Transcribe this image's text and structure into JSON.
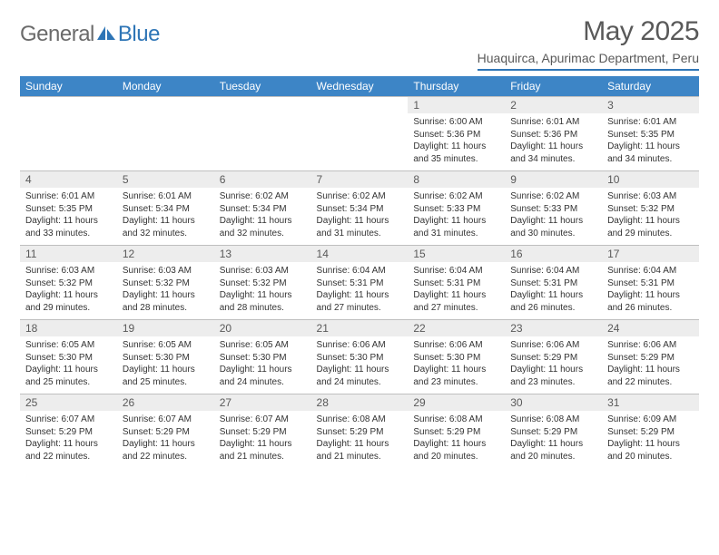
{
  "logo": {
    "part1": "General",
    "part2": "Blue"
  },
  "title": "May 2025",
  "subtitle": "Huaquirca, Apurimac Department, Peru",
  "colors": {
    "header_bg": "#3d85c6",
    "header_text": "#ffffff",
    "rule": "#2e75b6",
    "daybar_bg": "#ededed",
    "daybar_border": "#bfbfbf",
    "text": "#333333",
    "muted": "#595959",
    "logo_gray": "#6b6b6b",
    "logo_blue": "#2e75b6",
    "background": "#ffffff"
  },
  "typography": {
    "title_fontsize": 30,
    "subtitle_fontsize": 14,
    "weekday_fontsize": 12,
    "daynum_fontsize": 12,
    "cell_fontsize": 10,
    "font_family": "Arial"
  },
  "weekdays": [
    "Sunday",
    "Monday",
    "Tuesday",
    "Wednesday",
    "Thursday",
    "Friday",
    "Saturday"
  ],
  "weeks": [
    [
      null,
      null,
      null,
      null,
      {
        "n": "1",
        "sunrise": "6:00 AM",
        "sunset": "5:36 PM",
        "daylight": "11 hours and 35 minutes."
      },
      {
        "n": "2",
        "sunrise": "6:01 AM",
        "sunset": "5:36 PM",
        "daylight": "11 hours and 34 minutes."
      },
      {
        "n": "3",
        "sunrise": "6:01 AM",
        "sunset": "5:35 PM",
        "daylight": "11 hours and 34 minutes."
      }
    ],
    [
      {
        "n": "4",
        "sunrise": "6:01 AM",
        "sunset": "5:35 PM",
        "daylight": "11 hours and 33 minutes."
      },
      {
        "n": "5",
        "sunrise": "6:01 AM",
        "sunset": "5:34 PM",
        "daylight": "11 hours and 32 minutes."
      },
      {
        "n": "6",
        "sunrise": "6:02 AM",
        "sunset": "5:34 PM",
        "daylight": "11 hours and 32 minutes."
      },
      {
        "n": "7",
        "sunrise": "6:02 AM",
        "sunset": "5:34 PM",
        "daylight": "11 hours and 31 minutes."
      },
      {
        "n": "8",
        "sunrise": "6:02 AM",
        "sunset": "5:33 PM",
        "daylight": "11 hours and 31 minutes."
      },
      {
        "n": "9",
        "sunrise": "6:02 AM",
        "sunset": "5:33 PM",
        "daylight": "11 hours and 30 minutes."
      },
      {
        "n": "10",
        "sunrise": "6:03 AM",
        "sunset": "5:32 PM",
        "daylight": "11 hours and 29 minutes."
      }
    ],
    [
      {
        "n": "11",
        "sunrise": "6:03 AM",
        "sunset": "5:32 PM",
        "daylight": "11 hours and 29 minutes."
      },
      {
        "n": "12",
        "sunrise": "6:03 AM",
        "sunset": "5:32 PM",
        "daylight": "11 hours and 28 minutes."
      },
      {
        "n": "13",
        "sunrise": "6:03 AM",
        "sunset": "5:32 PM",
        "daylight": "11 hours and 28 minutes."
      },
      {
        "n": "14",
        "sunrise": "6:04 AM",
        "sunset": "5:31 PM",
        "daylight": "11 hours and 27 minutes."
      },
      {
        "n": "15",
        "sunrise": "6:04 AM",
        "sunset": "5:31 PM",
        "daylight": "11 hours and 27 minutes."
      },
      {
        "n": "16",
        "sunrise": "6:04 AM",
        "sunset": "5:31 PM",
        "daylight": "11 hours and 26 minutes."
      },
      {
        "n": "17",
        "sunrise": "6:04 AM",
        "sunset": "5:31 PM",
        "daylight": "11 hours and 26 minutes."
      }
    ],
    [
      {
        "n": "18",
        "sunrise": "6:05 AM",
        "sunset": "5:30 PM",
        "daylight": "11 hours and 25 minutes."
      },
      {
        "n": "19",
        "sunrise": "6:05 AM",
        "sunset": "5:30 PM",
        "daylight": "11 hours and 25 minutes."
      },
      {
        "n": "20",
        "sunrise": "6:05 AM",
        "sunset": "5:30 PM",
        "daylight": "11 hours and 24 minutes."
      },
      {
        "n": "21",
        "sunrise": "6:06 AM",
        "sunset": "5:30 PM",
        "daylight": "11 hours and 24 minutes."
      },
      {
        "n": "22",
        "sunrise": "6:06 AM",
        "sunset": "5:30 PM",
        "daylight": "11 hours and 23 minutes."
      },
      {
        "n": "23",
        "sunrise": "6:06 AM",
        "sunset": "5:29 PM",
        "daylight": "11 hours and 23 minutes."
      },
      {
        "n": "24",
        "sunrise": "6:06 AM",
        "sunset": "5:29 PM",
        "daylight": "11 hours and 22 minutes."
      }
    ],
    [
      {
        "n": "25",
        "sunrise": "6:07 AM",
        "sunset": "5:29 PM",
        "daylight": "11 hours and 22 minutes."
      },
      {
        "n": "26",
        "sunrise": "6:07 AM",
        "sunset": "5:29 PM",
        "daylight": "11 hours and 22 minutes."
      },
      {
        "n": "27",
        "sunrise": "6:07 AM",
        "sunset": "5:29 PM",
        "daylight": "11 hours and 21 minutes."
      },
      {
        "n": "28",
        "sunrise": "6:08 AM",
        "sunset": "5:29 PM",
        "daylight": "11 hours and 21 minutes."
      },
      {
        "n": "29",
        "sunrise": "6:08 AM",
        "sunset": "5:29 PM",
        "daylight": "11 hours and 20 minutes."
      },
      {
        "n": "30",
        "sunrise": "6:08 AM",
        "sunset": "5:29 PM",
        "daylight": "11 hours and 20 minutes."
      },
      {
        "n": "31",
        "sunrise": "6:09 AM",
        "sunset": "5:29 PM",
        "daylight": "11 hours and 20 minutes."
      }
    ]
  ],
  "labels": {
    "sunrise": "Sunrise: ",
    "sunset": "Sunset: ",
    "daylight": "Daylight: "
  }
}
